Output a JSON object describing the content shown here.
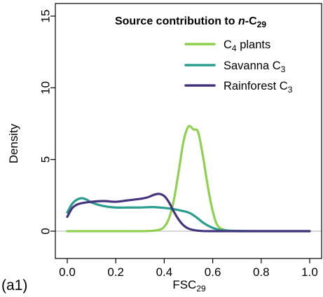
{
  "chart_data": {
    "type": "line",
    "panel_label": "(a1)",
    "title": {
      "prefix": "Source contribution to ",
      "italic": "n",
      "middle": "-C",
      "sub": "29"
    },
    "xlabel": {
      "base": "FSC",
      "sub": "29"
    },
    "ylabel": "Density",
    "xlim": [
      0,
      1.0
    ],
    "ylim": [
      0,
      15
    ],
    "x_ticks": [
      "0.0",
      "0.2",
      "0.4",
      "0.6",
      "0.8",
      "1.0"
    ],
    "y_ticks": [
      "0",
      "5",
      "10",
      "15"
    ],
    "legend_placement": "top-right",
    "grid": false,
    "series": [
      {
        "name": {
          "base": "C",
          "sub": "4",
          "rest": " plants"
        },
        "color": "#8fd14f",
        "x": [
          0.0,
          0.1,
          0.2,
          0.3,
          0.35,
          0.38,
          0.4,
          0.42,
          0.44,
          0.46,
          0.48,
          0.5,
          0.52,
          0.54,
          0.56,
          0.58,
          0.6,
          0.62,
          0.65,
          0.7,
          0.8,
          1.0
        ],
        "y": [
          0.0,
          0.0,
          0.0,
          0.0,
          0.02,
          0.1,
          0.3,
          0.9,
          2.2,
          4.2,
          6.3,
          7.3,
          7.1,
          6.9,
          5.2,
          3.1,
          1.4,
          0.4,
          0.08,
          0.0,
          0.0,
          0.0
        ]
      },
      {
        "name": {
          "base": "Savanna C",
          "sub": "3",
          "rest": ""
        },
        "color": "#2a9d8f",
        "x": [
          0.0,
          0.02,
          0.04,
          0.06,
          0.08,
          0.1,
          0.15,
          0.2,
          0.25,
          0.3,
          0.35,
          0.4,
          0.45,
          0.5,
          0.53,
          0.56,
          0.59,
          0.62,
          0.65,
          0.7,
          0.8,
          1.0
        ],
        "y": [
          1.3,
          1.9,
          2.2,
          2.3,
          2.2,
          2.0,
          1.75,
          1.65,
          1.65,
          1.65,
          1.68,
          1.62,
          1.5,
          1.3,
          1.0,
          0.6,
          0.3,
          0.12,
          0.05,
          0.02,
          0.0,
          0.0
        ]
      },
      {
        "name": {
          "base": "Rainforest C",
          "sub": "3",
          "rest": ""
        },
        "color": "#46337e",
        "x": [
          0.0,
          0.02,
          0.04,
          0.06,
          0.1,
          0.15,
          0.2,
          0.25,
          0.3,
          0.33,
          0.36,
          0.38,
          0.4,
          0.42,
          0.44,
          0.46,
          0.48,
          0.5,
          0.53,
          0.56,
          0.6,
          0.7,
          1.0
        ],
        "y": [
          1.0,
          1.6,
          1.85,
          1.95,
          2.05,
          2.1,
          2.05,
          2.15,
          2.25,
          2.35,
          2.55,
          2.6,
          2.45,
          2.0,
          1.35,
          0.8,
          0.4,
          0.18,
          0.05,
          0.01,
          0.0,
          0.0,
          0.0
        ]
      }
    ]
  }
}
